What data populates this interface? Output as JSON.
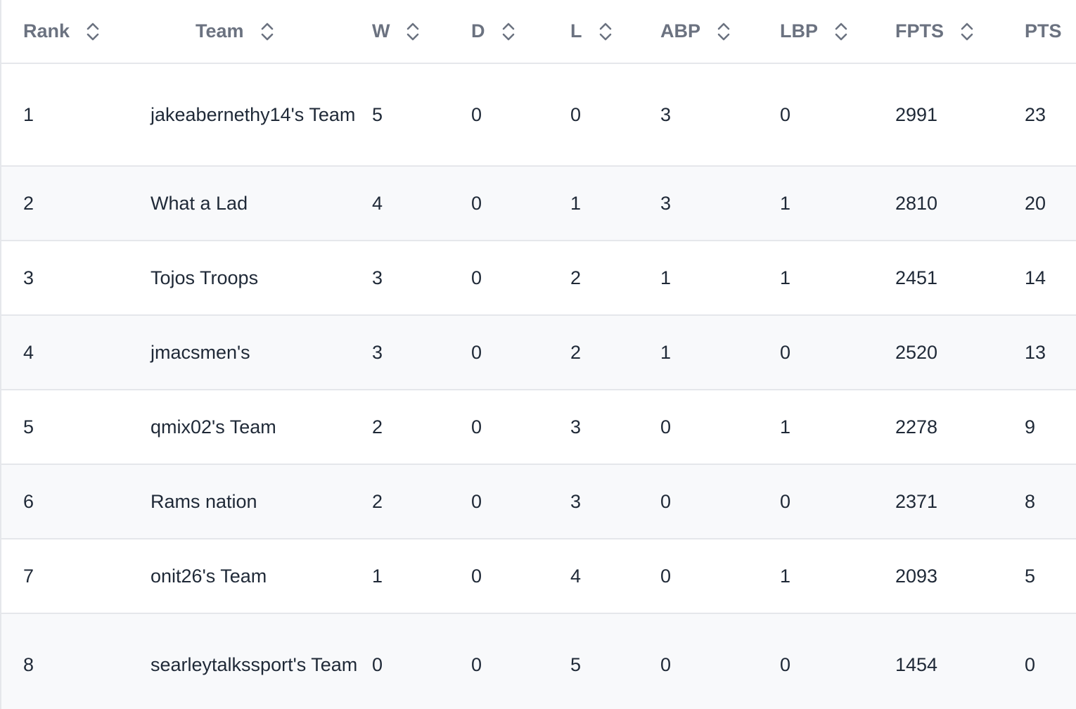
{
  "table": {
    "columns": [
      {
        "key": "rank",
        "label": "Rank"
      },
      {
        "key": "team",
        "label": "Team"
      },
      {
        "key": "w",
        "label": "W"
      },
      {
        "key": "d",
        "label": "D"
      },
      {
        "key": "l",
        "label": "L"
      },
      {
        "key": "abp",
        "label": "ABP"
      },
      {
        "key": "lbp",
        "label": "LBP"
      },
      {
        "key": "fpts",
        "label": "FPTS"
      },
      {
        "key": "pts",
        "label": "PTS"
      }
    ],
    "rows": [
      {
        "rank": "1",
        "team": "jakeabernethy14's Team",
        "w": "5",
        "d": "0",
        "l": "0",
        "abp": "3",
        "lbp": "0",
        "fpts": "2991",
        "pts": "23"
      },
      {
        "rank": "2",
        "team": "What a Lad",
        "w": "4",
        "d": "0",
        "l": "1",
        "abp": "3",
        "lbp": "1",
        "fpts": "2810",
        "pts": "20"
      },
      {
        "rank": "3",
        "team": "Tojos Troops",
        "w": "3",
        "d": "0",
        "l": "2",
        "abp": "1",
        "lbp": "1",
        "fpts": "2451",
        "pts": "14"
      },
      {
        "rank": "4",
        "team": "jmacsmen's",
        "w": "3",
        "d": "0",
        "l": "2",
        "abp": "1",
        "lbp": "0",
        "fpts": "2520",
        "pts": "13"
      },
      {
        "rank": "5",
        "team": "qmix02's Team",
        "w": "2",
        "d": "0",
        "l": "3",
        "abp": "0",
        "lbp": "1",
        "fpts": "2278",
        "pts": "9"
      },
      {
        "rank": "6",
        "team": "Rams nation",
        "w": "2",
        "d": "0",
        "l": "3",
        "abp": "0",
        "lbp": "0",
        "fpts": "2371",
        "pts": "8"
      },
      {
        "rank": "7",
        "team": "onit26's Team",
        "w": "1",
        "d": "0",
        "l": "4",
        "abp": "0",
        "lbp": "1",
        "fpts": "2093",
        "pts": "5"
      },
      {
        "rank": "8",
        "team": "searleytalkssport's Team",
        "w": "0",
        "d": "0",
        "l": "5",
        "abp": "0",
        "lbp": "0",
        "fpts": "1454",
        "pts": "0"
      }
    ]
  },
  "icons": {
    "sort": "sort-chevrons-icon"
  },
  "colors": {
    "header_text": "#6b7280",
    "body_text": "#1f2937",
    "row_alt": "#f8f9fb",
    "border": "#e5e7eb"
  }
}
